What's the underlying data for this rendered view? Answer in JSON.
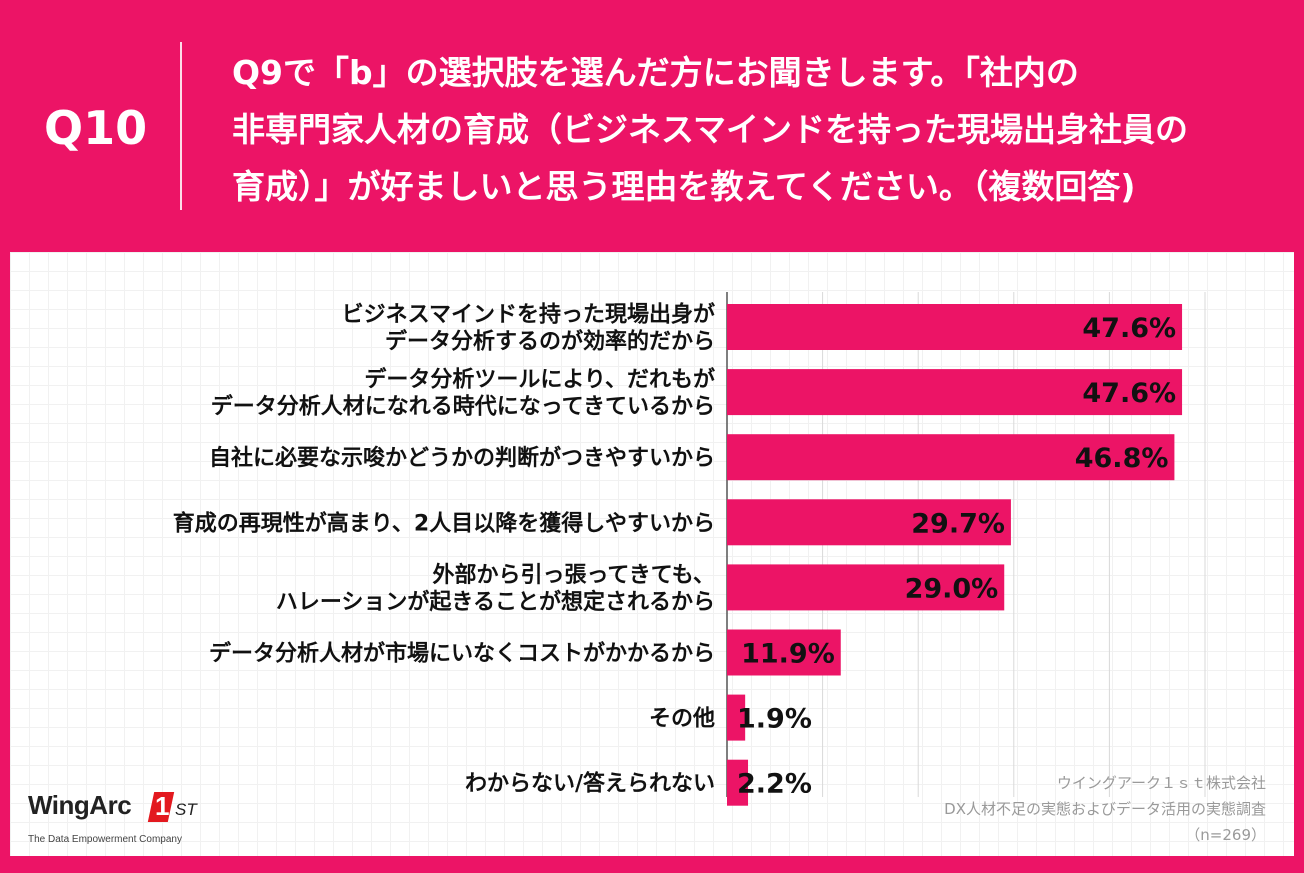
{
  "header": {
    "question_number": "Q10",
    "question_lines": [
      "Q9で「b」の選択肢を選んだ方にお聞きします。「社内の",
      "非専門家人材の育成（ビジネスマインドを持った現場出身社員の",
      "育成）」が好ましいと思う理由を教えてください。（複数回答)"
    ]
  },
  "chart_data": {
    "type": "bar",
    "orientation": "horizontal",
    "unit": "%",
    "xlim": [
      0,
      50
    ],
    "grid": true,
    "bar_color": "#ec1466",
    "categories": [
      [
        "ビジネスマインドを持った現場出身が",
        "データ分析するのが効率的だから"
      ],
      [
        "データ分析ツールにより、だれもが",
        "データ分析人材になれる時代になってきているから"
      ],
      [
        "自社に必要な示唆かどうかの判断がつきやすいから"
      ],
      [
        "育成の再現性が高まり、2人目以降を獲得しやすいから"
      ],
      [
        "外部から引っ張ってきても、",
        "ハレーションが起きることが想定されるから"
      ],
      [
        "データ分析人材が市場にいなくコストがかかるから"
      ],
      [
        "その他"
      ],
      [
        "わからない/答えられない"
      ]
    ],
    "values": [
      47.6,
      47.6,
      46.8,
      29.7,
      29.0,
      11.9,
      1.9,
      2.2
    ],
    "value_labels": [
      "47.6%",
      "47.6%",
      "46.8%",
      "29.7%",
      "29.0%",
      "11.9%",
      "1.9%",
      "2.2%"
    ]
  },
  "source": {
    "company": "ウイングアーク１ｓｔ株式会社",
    "survey": "DX人材不足の実態およびデータ活用の実態調査",
    "sample": "（n=269）"
  },
  "logo": {
    "wordmark": "WingArc",
    "mark_number": "1",
    "mark_suffix": "ST",
    "tagline": "The Data Empowerment Company"
  }
}
